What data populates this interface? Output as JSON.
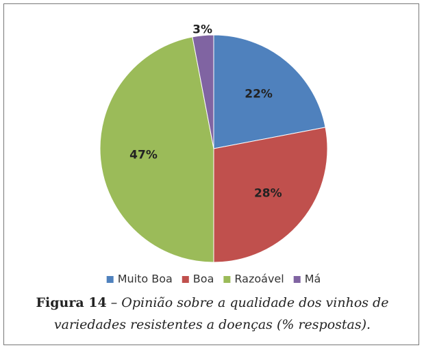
{
  "chart_data": {
    "type": "pie",
    "categories": [
      "Muito Boa",
      "Boa",
      "Razoável",
      "Má"
    ],
    "values": [
      22,
      28,
      47,
      3
    ],
    "value_labels": [
      "22%",
      "28%",
      "47%",
      "3%"
    ],
    "colors": [
      "#4f81bd",
      "#c0504d",
      "#9bbb59",
      "#8064a2"
    ],
    "legend": "bottom",
    "caption_label": "Figura 14",
    "caption": "– Opinião sobre a qualidade dos vinhos de variedades resistentes a doenças (% respostas)."
  }
}
